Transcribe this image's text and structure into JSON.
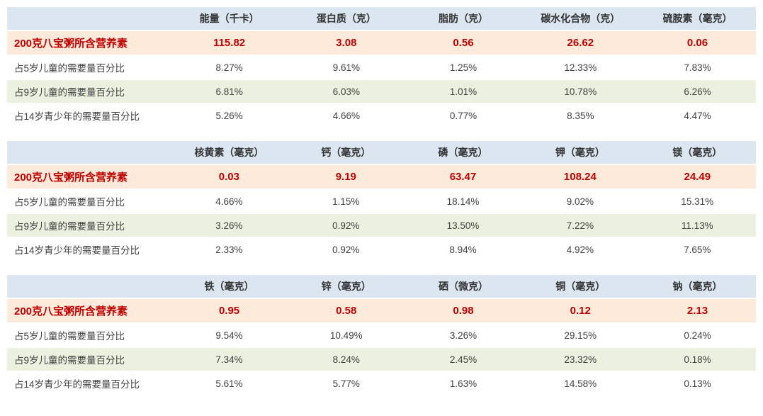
{
  "row_labels": {
    "main": "200克八宝粥所含营养素",
    "pct5": "占5岁儿童的需要量百分比",
    "pct9": "占9岁儿童的需要量百分比",
    "pct14": "占14岁青少年的需要量百分比"
  },
  "tables": [
    {
      "headers": [
        "能量（千卡）",
        "蛋白质（克）",
        "脂肪（克）",
        "碳水化合物（克）",
        "硫胺素（毫克）"
      ],
      "main": [
        "115.82",
        "3.08",
        "0.56",
        "26.62",
        "0.06"
      ],
      "pct5": [
        "8.27%",
        "9.61%",
        "1.25%",
        "12.33%",
        "7.83%"
      ],
      "pct9": [
        "6.81%",
        "6.03%",
        "1.01%",
        "10.78%",
        "6.26%"
      ],
      "pct14": [
        "5.26%",
        "4.66%",
        "0.77%",
        "8.35%",
        "4.47%"
      ]
    },
    {
      "headers": [
        "核黄素（毫克）",
        "钙（毫克）",
        "磷（毫克）",
        "钾（毫克）",
        "镁（毫克）"
      ],
      "main": [
        "0.03",
        "9.19",
        "63.47",
        "108.24",
        "24.49"
      ],
      "pct5": [
        "4.66%",
        "1.15%",
        "18.14%",
        "9.02%",
        "15.31%"
      ],
      "pct9": [
        "3.26%",
        "0.92%",
        "13.50%",
        "7.22%",
        "11.13%"
      ],
      "pct14": [
        "2.33%",
        "0.92%",
        "8.94%",
        "4.92%",
        "7.65%"
      ]
    },
    {
      "headers": [
        "铁（毫克）",
        "锌（毫克）",
        "硒（微克）",
        "铜（毫克）",
        "钠（毫克）"
      ],
      "main": [
        "0.95",
        "0.58",
        "0.98",
        "0.12",
        "2.13"
      ],
      "pct5": [
        "9.54%",
        "10.49%",
        "3.26%",
        "29.15%",
        "0.24%"
      ],
      "pct9": [
        "7.34%",
        "8.24%",
        "2.45%",
        "23.32%",
        "0.18%"
      ],
      "pct14": [
        "5.61%",
        "5.77%",
        "1.63%",
        "14.58%",
        "0.13%"
      ]
    }
  ],
  "colors": {
    "header_bg": "#dce6f1",
    "main_row_bg": "#fdeada",
    "main_row_text": "#c00000",
    "alt_row_bg": "#ebf1de",
    "text": "#404040"
  }
}
